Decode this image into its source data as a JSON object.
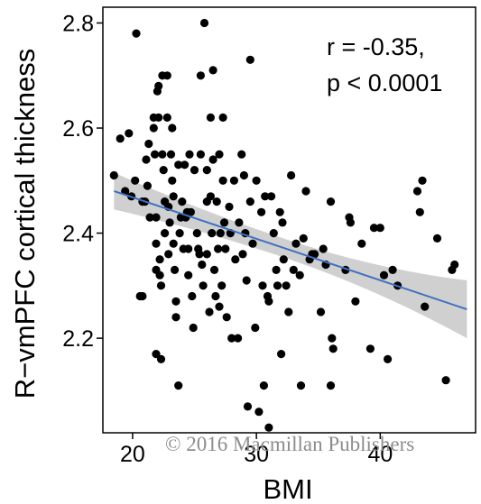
{
  "chart_data": {
    "type": "scatter",
    "xlabel": "BMI",
    "ylabel": "R−vmPFC cortical thickness",
    "xlim": [
      17.6,
      47.7
    ],
    "ylim": [
      2.02,
      2.83
    ],
    "xticks": [
      20,
      30,
      40
    ],
    "yticks": [
      2.2,
      2.4,
      2.6,
      2.8
    ],
    "grid": false,
    "annotation": [
      "r = -0.35,",
      "p < 0.0001"
    ],
    "fit": {
      "x": [
        18.5,
        47.0
      ],
      "y": [
        2.48,
        2.255
      ],
      "ci_half": [
        0.035,
        0.018,
        0.055
      ]
    },
    "colors": {
      "points": "#000000",
      "fit_line": "#4070c0",
      "ci_band": "#c0c0c0",
      "axis": "#000000"
    },
    "points": [
      [
        18.5,
        2.51
      ],
      [
        19.0,
        2.58
      ],
      [
        19.7,
        2.59
      ],
      [
        19.4,
        2.48
      ],
      [
        19.9,
        2.47
      ],
      [
        20.2,
        2.5
      ],
      [
        20.3,
        2.78
      ],
      [
        20.6,
        2.28
      ],
      [
        20.8,
        2.28
      ],
      [
        20.8,
        2.46
      ],
      [
        21.0,
        2.46
      ],
      [
        21.1,
        2.54
      ],
      [
        21.2,
        2.49
      ],
      [
        21.3,
        2.57
      ],
      [
        21.4,
        2.43
      ],
      [
        21.7,
        2.6
      ],
      [
        21.7,
        2.62
      ],
      [
        21.8,
        2.55
      ],
      [
        21.9,
        2.43
      ],
      [
        21.9,
        2.38
      ],
      [
        21.9,
        2.33
      ],
      [
        21.9,
        2.17
      ],
      [
        22.0,
        2.67
      ],
      [
        22.1,
        2.68
      ],
      [
        22.1,
        2.62
      ],
      [
        22.2,
        2.35
      ],
      [
        22.2,
        2.32
      ],
      [
        22.3,
        2.3
      ],
      [
        22.3,
        2.16
      ],
      [
        22.4,
        2.7
      ],
      [
        22.4,
        2.55
      ],
      [
        22.5,
        2.52
      ],
      [
        22.6,
        2.46
      ],
      [
        22.6,
        2.4
      ],
      [
        22.8,
        2.7
      ],
      [
        22.8,
        2.62
      ],
      [
        22.9,
        2.45
      ],
      [
        22.9,
        2.36
      ],
      [
        23.0,
        2.42
      ],
      [
        23.1,
        2.55
      ],
      [
        23.2,
        2.6
      ],
      [
        23.2,
        2.5
      ],
      [
        23.3,
        2.47
      ],
      [
        23.3,
        2.38
      ],
      [
        23.4,
        2.33
      ],
      [
        23.5,
        2.27
      ],
      [
        23.5,
        2.24
      ],
      [
        23.7,
        2.53
      ],
      [
        23.7,
        2.11
      ],
      [
        23.8,
        2.4
      ],
      [
        23.9,
        2.43
      ],
      [
        24.0,
        2.46
      ],
      [
        24.1,
        2.37
      ],
      [
        24.2,
        2.53
      ],
      [
        24.3,
        2.43
      ],
      [
        24.4,
        2.44
      ],
      [
        24.5,
        2.37
      ],
      [
        24.5,
        2.32
      ],
      [
        24.6,
        2.55
      ],
      [
        24.7,
        2.44
      ],
      [
        24.8,
        2.28
      ],
      [
        24.9,
        2.22
      ],
      [
        25.0,
        2.52
      ],
      [
        25.2,
        2.4
      ],
      [
        25.3,
        2.37
      ],
      [
        25.4,
        2.36
      ],
      [
        25.5,
        2.7
      ],
      [
        25.5,
        2.55
      ],
      [
        25.6,
        2.34
      ],
      [
        25.7,
        2.3
      ],
      [
        25.8,
        2.8
      ],
      [
        26.0,
        2.52
      ],
      [
        26.0,
        2.46
      ],
      [
        26.0,
        2.36
      ],
      [
        26.2,
        2.25
      ],
      [
        26.3,
        2.62
      ],
      [
        26.3,
        2.47
      ],
      [
        26.4,
        2.4
      ],
      [
        26.5,
        2.71
      ],
      [
        26.5,
        2.54
      ],
      [
        26.6,
        2.33
      ],
      [
        26.7,
        2.28
      ],
      [
        26.8,
        2.46
      ],
      [
        26.9,
        2.37
      ],
      [
        27.0,
        2.55
      ],
      [
        27.0,
        2.26
      ],
      [
        27.1,
        2.4
      ],
      [
        27.2,
        2.3
      ],
      [
        27.3,
        2.62
      ],
      [
        27.3,
        2.5
      ],
      [
        27.4,
        2.42
      ],
      [
        27.5,
        2.37
      ],
      [
        27.6,
        2.24
      ],
      [
        27.8,
        2.45
      ],
      [
        27.9,
        2.4
      ],
      [
        28.0,
        2.2
      ],
      [
        28.2,
        2.5
      ],
      [
        28.3,
        2.35
      ],
      [
        28.5,
        2.2
      ],
      [
        28.6,
        2.42
      ],
      [
        28.8,
        2.55
      ],
      [
        28.9,
        2.36
      ],
      [
        29.0,
        2.51
      ],
      [
        29.1,
        2.4
      ],
      [
        29.2,
        2.31
      ],
      [
        29.3,
        2.07
      ],
      [
        29.5,
        2.73
      ],
      [
        29.5,
        2.46
      ],
      [
        29.7,
        2.38
      ],
      [
        29.9,
        2.22
      ],
      [
        30.0,
        2.5
      ],
      [
        30.2,
        2.06
      ],
      [
        30.4,
        2.44
      ],
      [
        30.5,
        2.3
      ],
      [
        30.6,
        2.11
      ],
      [
        30.7,
        2.47
      ],
      [
        30.9,
        2.28
      ],
      [
        31.0,
        2.27
      ],
      [
        31.0,
        2.03
      ],
      [
        31.2,
        2.47
      ],
      [
        31.4,
        2.4
      ],
      [
        31.6,
        2.33
      ],
      [
        31.7,
        2.3
      ],
      [
        31.9,
        2.44
      ],
      [
        32.0,
        2.17
      ],
      [
        32.1,
        2.42
      ],
      [
        32.2,
        2.35
      ],
      [
        32.4,
        2.3
      ],
      [
        32.6,
        2.25
      ],
      [
        32.8,
        2.51
      ],
      [
        33.0,
        2.33
      ],
      [
        33.2,
        2.38
      ],
      [
        33.5,
        2.32
      ],
      [
        33.6,
        2.11
      ],
      [
        33.8,
        2.39
      ],
      [
        34.0,
        2.48
      ],
      [
        34.3,
        2.35
      ],
      [
        34.5,
        2.36
      ],
      [
        34.7,
        2.36
      ],
      [
        35.2,
        2.25
      ],
      [
        35.4,
        2.37
      ],
      [
        35.6,
        2.34
      ],
      [
        36.0,
        2.46
      ],
      [
        36.1,
        2.2
      ],
      [
        36.2,
        2.18
      ],
      [
        36.0,
        2.11
      ],
      [
        37.2,
        2.33
      ],
      [
        37.5,
        2.43
      ],
      [
        37.6,
        2.42
      ],
      [
        38.0,
        2.27
      ],
      [
        38.5,
        2.38
      ],
      [
        39.2,
        2.18
      ],
      [
        39.5,
        2.41
      ],
      [
        40.0,
        2.41
      ],
      [
        40.3,
        2.32
      ],
      [
        40.6,
        2.16
      ],
      [
        41.0,
        2.33
      ],
      [
        41.4,
        2.3
      ],
      [
        43.0,
        2.48
      ],
      [
        43.2,
        2.44
      ],
      [
        43.4,
        2.5
      ],
      [
        43.6,
        2.26
      ],
      [
        44.6,
        2.39
      ],
      [
        45.3,
        2.12
      ],
      [
        45.8,
        2.33
      ],
      [
        46.0,
        2.34
      ]
    ]
  },
  "watermark": "©   2016 Macmillan Publishers"
}
